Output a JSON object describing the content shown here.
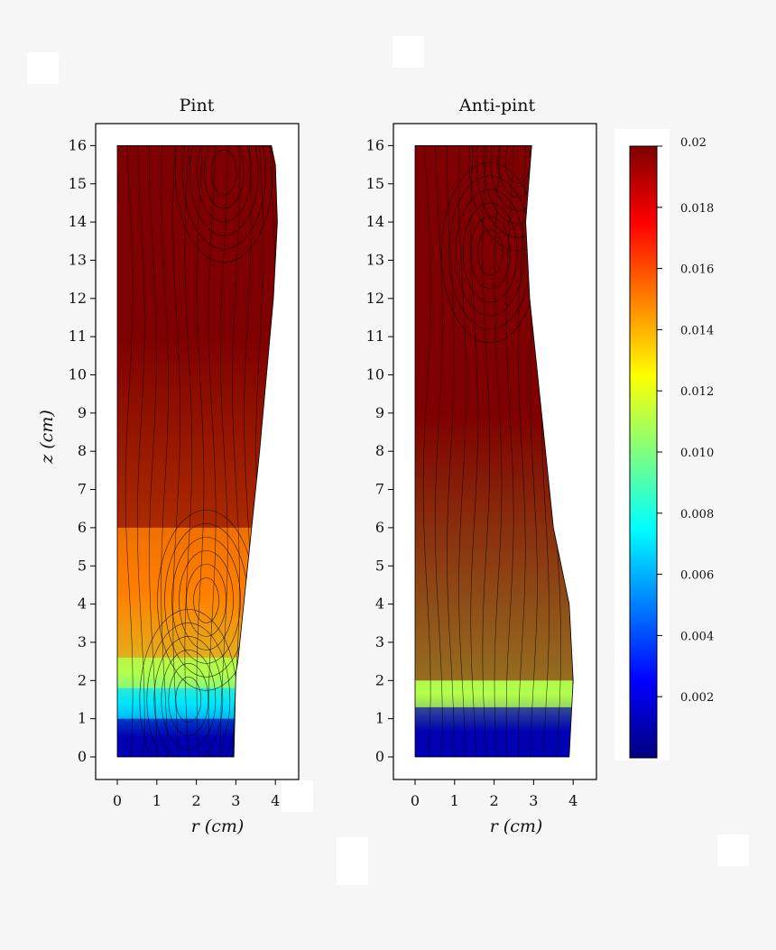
{
  "chart_data": [
    {
      "type": "heatmap",
      "title": "Pint",
      "xlabel": "r (cm)",
      "ylabel": "z (cm)",
      "xlim": [
        -0.5,
        4.5
      ],
      "ylim": [
        -0.5,
        16.5
      ],
      "x_ticks": [
        0,
        1,
        2,
        3,
        4
      ],
      "y_ticks": [
        0,
        1,
        2,
        3,
        4,
        5,
        6,
        7,
        8,
        9,
        10,
        11,
        12,
        13,
        14,
        15,
        16
      ],
      "domain_outer_radius": [
        [
          0,
          2.95
        ],
        [
          2.2,
          3.0
        ],
        [
          2.5,
          3.05
        ],
        [
          5,
          3.3
        ],
        [
          8,
          3.6
        ],
        [
          12,
          3.95
        ],
        [
          14,
          4.05
        ],
        [
          15.5,
          4.0
        ],
        [
          16,
          3.9
        ]
      ],
      "regions": [
        {
          "z": [
            6.0,
            16.0
          ],
          "r": [
            0,
            4.1
          ],
          "value": 0.02
        },
        {
          "z": [
            2.6,
            6.0
          ],
          "r": [
            0,
            3.4
          ],
          "value": 0.015
        },
        {
          "z": [
            1.8,
            2.6
          ],
          "r": [
            0,
            3.1
          ],
          "value": 0.011
        },
        {
          "z": [
            1.0,
            1.8
          ],
          "r": [
            0,
            3.0
          ],
          "value": 0.007
        },
        {
          "z": [
            0.0,
            1.0
          ],
          "r": [
            0,
            3.0
          ],
          "value": 0.001
        }
      ],
      "vortices": [
        {
          "r": 2.25,
          "z": 4.1,
          "sense": "counterclockwise"
        },
        {
          "r": 1.8,
          "z": 1.5,
          "sense": "counterclockwise"
        },
        {
          "r": 2.7,
          "z": 15.3,
          "sense": "clockwise"
        }
      ]
    },
    {
      "type": "heatmap",
      "title": "Anti-pint",
      "xlabel": "r (cm)",
      "ylabel": "",
      "xlim": [
        -0.5,
        4.5
      ],
      "ylim": [
        -0.5,
        16.5
      ],
      "x_ticks": [
        0,
        1,
        2,
        3,
        4
      ],
      "y_ticks": [
        0,
        1,
        2,
        3,
        4,
        5,
        6,
        7,
        8,
        9,
        10,
        11,
        12,
        13,
        14,
        15,
        16
      ],
      "domain_outer_radius": [
        [
          0,
          3.9
        ],
        [
          2,
          4.0
        ],
        [
          4,
          3.9
        ],
        [
          6,
          3.5
        ],
        [
          9,
          3.2
        ],
        [
          12,
          2.9
        ],
        [
          14,
          2.8
        ],
        [
          16,
          2.95
        ]
      ],
      "regions": [
        {
          "z": [
            2.0,
            16.0
          ],
          "r": [
            0,
            4.0
          ],
          "value": 0.02
        },
        {
          "z": [
            1.3,
            2.0
          ],
          "r": [
            0,
            4.0
          ],
          "value": 0.011
        },
        {
          "z": [
            0.0,
            1.3
          ],
          "r": [
            0,
            4.0
          ],
          "value": 0.001
        }
      ],
      "vortices": [
        {
          "r": 1.9,
          "z": 13.2,
          "sense": "counterclockwise"
        },
        {
          "r": 2.6,
          "z": 15.6,
          "sense": "clockwise"
        }
      ]
    }
  ],
  "colorbar": {
    "range": [
      0,
      0.02
    ],
    "ticks": [
      0.002,
      0.004,
      0.006,
      0.008,
      0.01,
      0.012,
      0.014,
      0.016,
      0.018,
      0.02
    ],
    "tick_labels": [
      "0.002",
      "0.004",
      "0.006",
      "0.008",
      "0.010",
      "0.012",
      "0.014",
      "0.016",
      "0.018",
      "0.02"
    ],
    "colormap": "jet",
    "colors": [
      "#00007f",
      "#0000ff",
      "#007fff",
      "#00ffff",
      "#7fff7f",
      "#ffff00",
      "#ff7f00",
      "#ff0000",
      "#7f0000"
    ]
  },
  "streamline_color": "#000000"
}
